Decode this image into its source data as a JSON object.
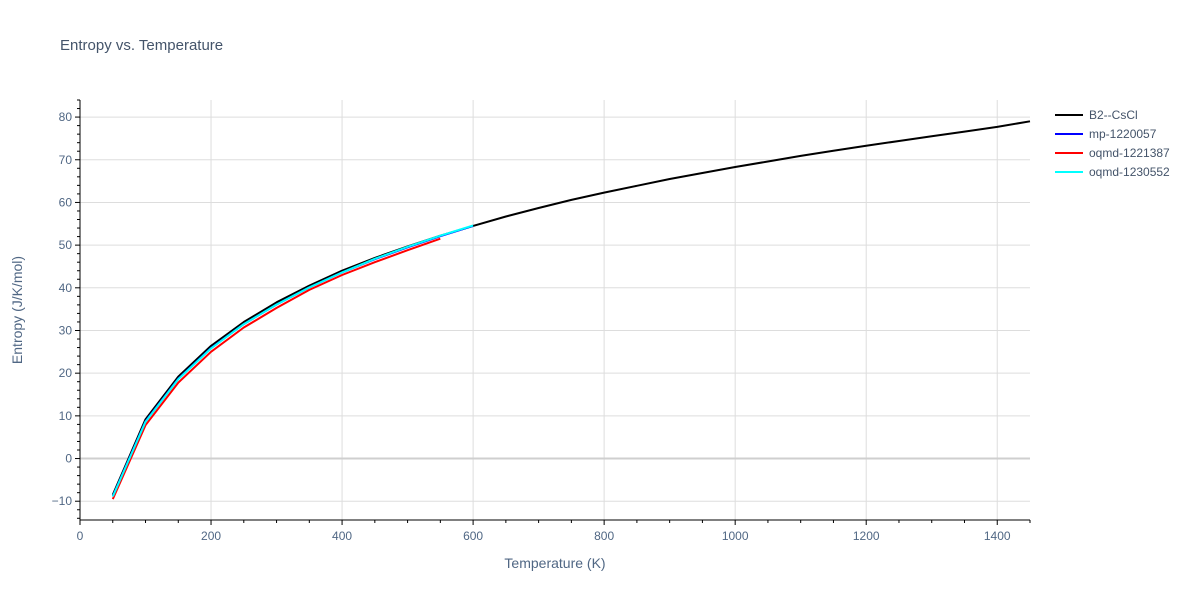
{
  "chart_data": {
    "type": "line",
    "title": "Entropy vs. Temperature",
    "xlabel": "Temperature (K)",
    "ylabel": "Entropy (J/K/mol)",
    "xlim": [
      0,
      1450
    ],
    "ylim": [
      -14.4,
      84
    ],
    "xticks": [
      0,
      200,
      400,
      600,
      800,
      1000,
      1200,
      1400
    ],
    "yticks": [
      -10,
      0,
      10,
      20,
      30,
      40,
      50,
      60,
      70,
      80
    ],
    "grid": true,
    "legend_position": "right",
    "series": [
      {
        "name": "B2--CsCl",
        "color": "#000000",
        "x": [
          50,
          100,
          150,
          200,
          250,
          300,
          350,
          400,
          450,
          500,
          550,
          600,
          650,
          700,
          750,
          800,
          850,
          900,
          950,
          1000,
          1050,
          1100,
          1150,
          1200,
          1250,
          1300,
          1350,
          1400,
          1450
        ],
        "y": [
          -8.5,
          9.2,
          19.2,
          26.4,
          32.0,
          36.6,
          40.5,
          44.0,
          47.0,
          49.7,
          52.2,
          54.5,
          56.7,
          58.7,
          60.6,
          62.3,
          63.9,
          65.5,
          66.9,
          68.3,
          69.6,
          70.9,
          72.1,
          73.3,
          74.4,
          75.5,
          76.6,
          77.7,
          79.0
        ]
      },
      {
        "name": "mp-1220057",
        "color": "#0000ff",
        "x": [
          50,
          100,
          150,
          200,
          250,
          300,
          350,
          400,
          450,
          500,
          550,
          600
        ],
        "y": [
          -8.8,
          8.7,
          18.7,
          25.9,
          31.5,
          36.1,
          40.1,
          43.6,
          46.7,
          49.5,
          52.1,
          54.5
        ]
      },
      {
        "name": "oqmd-1221387",
        "color": "#ff0000",
        "x": [
          50,
          100,
          150,
          200,
          250,
          300,
          350,
          400,
          450,
          500,
          550
        ],
        "y": [
          -9.5,
          7.8,
          17.8,
          25.0,
          30.7,
          35.3,
          39.5,
          43.0,
          46.0,
          48.8,
          51.5
        ]
      },
      {
        "name": "oqmd-1230552",
        "color": "#00ffff",
        "x": [
          50,
          100,
          150,
          200,
          250,
          300,
          350,
          400,
          450,
          500,
          550,
          600
        ],
        "y": [
          -8.9,
          8.6,
          18.6,
          25.8,
          31.5,
          36.1,
          40.1,
          43.6,
          46.8,
          49.6,
          52.2,
          54.6
        ]
      }
    ]
  }
}
